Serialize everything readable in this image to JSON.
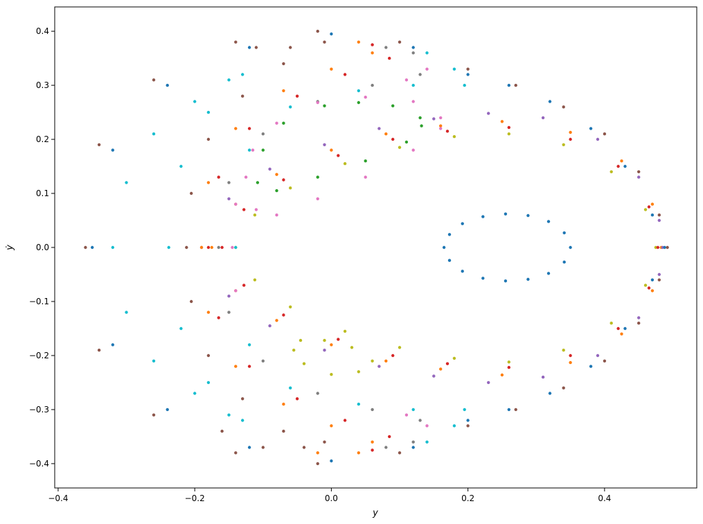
{
  "chart_data": {
    "type": "scatter",
    "title": "",
    "xlabel": "y",
    "ylabel": "ẏ",
    "xlim": [
      -0.405,
      0.535
    ],
    "ylim": [
      -0.445,
      0.445
    ],
    "xticks": [
      -0.4,
      -0.2,
      0.0,
      0.2,
      0.4
    ],
    "xtick_labels": [
      "−0.4",
      "−0.2",
      "0.0",
      "0.2",
      "0.4"
    ],
    "yticks": [
      -0.4,
      -0.3,
      -0.2,
      -0.1,
      0.0,
      0.1,
      0.2,
      0.3,
      0.4
    ],
    "ytick_labels": [
      "−0.4",
      "−0.3",
      "−0.2",
      "−0.1",
      "0.0",
      "0.1",
      "0.2",
      "0.3",
      "0.4"
    ],
    "grid": false,
    "legend": "none",
    "series": [
      {
        "color": "#1f77b4",
        "points": [
          [
            0.35,
            0.0
          ],
          [
            0.341,
            0.027
          ],
          [
            0.318,
            0.048
          ],
          [
            0.288,
            0.059
          ],
          [
            0.255,
            0.062
          ],
          [
            0.222,
            0.057
          ],
          [
            0.192,
            0.044
          ],
          [
            0.173,
            0.024
          ],
          [
            0.165,
            0.0
          ],
          [
            0.173,
            -0.024
          ],
          [
            0.192,
            -0.044
          ],
          [
            0.222,
            -0.057
          ],
          [
            0.255,
            -0.062
          ],
          [
            0.288,
            -0.059
          ],
          [
            0.318,
            -0.048
          ],
          [
            0.341,
            -0.027
          ]
        ]
      },
      {
        "color": "#bcbd22",
        "points": [
          [
            -0.14,
            0.0
          ],
          [
            -0.112,
            0.06
          ],
          [
            -0.06,
            0.11
          ],
          [
            0.02,
            0.155
          ],
          [
            0.1,
            0.185
          ],
          [
            0.18,
            0.205
          ],
          [
            0.26,
            0.21
          ],
          [
            0.34,
            0.19
          ],
          [
            0.41,
            0.14
          ],
          [
            0.46,
            0.07
          ],
          [
            0.475,
            0.0
          ],
          [
            0.46,
            -0.07
          ],
          [
            0.41,
            -0.14
          ],
          [
            0.34,
            -0.19
          ],
          [
            0.26,
            -0.212
          ],
          [
            0.18,
            -0.205
          ],
          [
            0.1,
            -0.185
          ],
          [
            0.02,
            -0.155
          ],
          [
            -0.06,
            -0.11
          ],
          [
            -0.112,
            -0.06
          ]
        ]
      },
      {
        "color": "#d62728",
        "points": [
          [
            -0.16,
            0.0
          ],
          [
            -0.128,
            0.07
          ],
          [
            -0.07,
            0.125
          ],
          [
            0.01,
            0.17
          ],
          [
            0.09,
            0.2
          ],
          [
            0.17,
            0.215
          ],
          [
            0.26,
            0.222
          ],
          [
            0.35,
            0.2
          ],
          [
            0.42,
            0.15
          ],
          [
            0.465,
            0.075
          ],
          [
            0.478,
            0.0
          ],
          [
            0.465,
            -0.075
          ],
          [
            0.42,
            -0.15
          ],
          [
            0.35,
            -0.2
          ],
          [
            0.26,
            -0.222
          ],
          [
            0.17,
            -0.215
          ],
          [
            0.09,
            -0.2
          ],
          [
            0.01,
            -0.17
          ],
          [
            -0.07,
            -0.125
          ],
          [
            -0.128,
            -0.07
          ]
        ]
      },
      {
        "color": "#ff7f0e",
        "points": [
          [
            -0.175,
            0.0
          ],
          [
            -0.14,
            0.08
          ],
          [
            -0.08,
            0.135
          ],
          [
            0.0,
            0.18
          ],
          [
            0.08,
            0.21
          ],
          [
            0.16,
            0.225
          ],
          [
            0.25,
            0.233
          ],
          [
            0.35,
            0.213
          ],
          [
            0.425,
            0.16
          ],
          [
            0.47,
            0.08
          ],
          [
            0.483,
            0.0
          ],
          [
            0.47,
            -0.08
          ],
          [
            0.425,
            -0.16
          ],
          [
            0.35,
            -0.213
          ],
          [
            0.25,
            -0.236
          ],
          [
            0.16,
            -0.225
          ],
          [
            0.08,
            -0.21
          ],
          [
            0.0,
            -0.18
          ],
          [
            -0.08,
            -0.135
          ],
          [
            -0.14,
            -0.08
          ]
        ]
      },
      {
        "color": "#9467bd",
        "points": [
          [
            -0.19,
            0.0
          ],
          [
            -0.15,
            0.09
          ],
          [
            -0.09,
            0.145
          ],
          [
            -0.01,
            0.19
          ],
          [
            0.07,
            0.22
          ],
          [
            0.15,
            0.238
          ],
          [
            0.23,
            0.248
          ],
          [
            0.31,
            0.24
          ],
          [
            0.39,
            0.2
          ],
          [
            0.45,
            0.13
          ],
          [
            0.48,
            0.05
          ],
          [
            0.485,
            0.0
          ],
          [
            0.48,
            -0.05
          ],
          [
            0.45,
            -0.13
          ],
          [
            0.39,
            -0.2
          ],
          [
            0.31,
            -0.24
          ],
          [
            0.23,
            -0.25
          ],
          [
            0.15,
            -0.238
          ],
          [
            0.07,
            -0.22
          ],
          [
            -0.01,
            -0.19
          ],
          [
            -0.09,
            -0.145
          ],
          [
            -0.15,
            -0.09
          ]
        ]
      },
      {
        "color": "#1f77b4",
        "points": [
          [
            0.2,
            0.32
          ],
          [
            0.26,
            0.3
          ],
          [
            0.32,
            0.27
          ],
          [
            0.38,
            0.22
          ],
          [
            0.43,
            0.15
          ],
          [
            0.47,
            0.06
          ],
          [
            0.488,
            0.0
          ],
          [
            0.47,
            -0.06
          ],
          [
            0.43,
            -0.15
          ],
          [
            0.38,
            -0.22
          ],
          [
            0.32,
            -0.27
          ],
          [
            0.26,
            -0.3
          ],
          [
            0.2,
            -0.32
          ],
          [
            0.12,
            -0.37
          ],
          [
            0.0,
            -0.395
          ],
          [
            -0.12,
            -0.37
          ],
          [
            -0.24,
            -0.3
          ],
          [
            -0.32,
            -0.18
          ],
          [
            -0.35,
            0.0
          ],
          [
            -0.32,
            0.18
          ],
          [
            -0.24,
            0.3
          ],
          [
            -0.12,
            0.37
          ],
          [
            0.0,
            0.395
          ],
          [
            0.12,
            0.37
          ]
        ]
      },
      {
        "color": "#8c564b",
        "points": [
          [
            0.2,
            0.33
          ],
          [
            0.27,
            0.3
          ],
          [
            0.34,
            0.26
          ],
          [
            0.4,
            0.21
          ],
          [
            0.45,
            0.14
          ],
          [
            0.48,
            0.06
          ],
          [
            0.492,
            0.0
          ],
          [
            0.48,
            -0.06
          ],
          [
            0.45,
            -0.14
          ],
          [
            0.4,
            -0.21
          ],
          [
            0.34,
            -0.26
          ],
          [
            0.27,
            -0.3
          ],
          [
            0.2,
            -0.33
          ],
          [
            0.1,
            -0.38
          ],
          [
            -0.02,
            -0.4
          ],
          [
            -0.14,
            -0.38
          ],
          [
            -0.26,
            -0.31
          ],
          [
            -0.34,
            -0.19
          ],
          [
            -0.36,
            0.0
          ],
          [
            -0.34,
            0.19
          ],
          [
            -0.26,
            0.31
          ],
          [
            -0.14,
            0.38
          ],
          [
            -0.02,
            0.4
          ],
          [
            0.1,
            0.38
          ]
        ]
      },
      {
        "color": "#17becf",
        "points": [
          [
            -0.13,
            0.32
          ],
          [
            -0.18,
            0.25
          ],
          [
            -0.22,
            0.15
          ],
          [
            -0.238,
            0.0
          ],
          [
            -0.22,
            -0.15
          ],
          [
            -0.18,
            -0.25
          ],
          [
            -0.13,
            -0.32
          ],
          [
            -0.15,
            -0.31
          ],
          [
            -0.2,
            -0.27
          ],
          [
            -0.26,
            -0.21
          ],
          [
            -0.3,
            -0.12
          ],
          [
            -0.32,
            0.0
          ],
          [
            -0.3,
            0.12
          ],
          [
            -0.26,
            0.21
          ],
          [
            -0.2,
            0.27
          ],
          [
            -0.15,
            0.31
          ]
        ]
      },
      {
        "color": "#8c564b",
        "points": [
          [
            -0.01,
            0.38
          ],
          [
            -0.07,
            0.34
          ],
          [
            -0.13,
            0.28
          ],
          [
            -0.18,
            0.2
          ],
          [
            -0.205,
            0.1
          ],
          [
            -0.212,
            0.0
          ],
          [
            -0.205,
            -0.1
          ],
          [
            -0.18,
            -0.2
          ],
          [
            -0.13,
            -0.28
          ],
          [
            -0.07,
            -0.34
          ],
          [
            -0.01,
            -0.36
          ],
          [
            -0.04,
            -0.37
          ],
          [
            -0.1,
            -0.37
          ],
          [
            -0.16,
            -0.34
          ],
          [
            -0.06,
            0.37
          ],
          [
            -0.11,
            0.37
          ]
        ]
      },
      {
        "color": "#ff7f0e",
        "points": [
          [
            0.06,
            0.36
          ],
          [
            0.0,
            0.33
          ],
          [
            -0.07,
            0.29
          ],
          [
            -0.14,
            0.22
          ],
          [
            -0.18,
            0.12
          ],
          [
            -0.19,
            0.0
          ],
          [
            -0.18,
            -0.12
          ],
          [
            -0.14,
            -0.22
          ],
          [
            -0.07,
            -0.29
          ],
          [
            0.0,
            -0.33
          ],
          [
            0.06,
            -0.36
          ],
          [
            0.04,
            -0.38
          ],
          [
            -0.02,
            -0.38
          ],
          [
            0.04,
            0.38
          ]
        ]
      },
      {
        "color": "#d62728",
        "points": [
          [
            0.085,
            0.35
          ],
          [
            0.02,
            0.32
          ],
          [
            -0.05,
            0.28
          ],
          [
            -0.12,
            0.22
          ],
          [
            -0.165,
            0.13
          ],
          [
            -0.18,
            0.0
          ],
          [
            -0.165,
            -0.13
          ],
          [
            -0.12,
            -0.22
          ],
          [
            -0.05,
            -0.28
          ],
          [
            0.02,
            -0.32
          ],
          [
            0.085,
            -0.35
          ],
          [
            0.06,
            -0.375
          ],
          [
            0.06,
            0.375
          ]
        ]
      },
      {
        "color": "#7f7f7f",
        "points": [
          [
            0.13,
            0.32
          ],
          [
            0.06,
            0.3
          ],
          [
            -0.02,
            0.27
          ],
          [
            -0.1,
            0.21
          ],
          [
            -0.15,
            0.12
          ],
          [
            -0.165,
            0.0
          ],
          [
            -0.15,
            -0.12
          ],
          [
            -0.1,
            -0.21
          ],
          [
            -0.02,
            -0.27
          ],
          [
            0.06,
            -0.3
          ],
          [
            0.13,
            -0.32
          ],
          [
            0.12,
            -0.36
          ],
          [
            0.08,
            -0.37
          ],
          [
            0.12,
            0.36
          ],
          [
            0.08,
            0.37
          ]
        ]
      },
      {
        "color": "#e377c2",
        "points": [
          [
            0.14,
            0.33
          ],
          [
            0.11,
            0.31
          ],
          [
            0.14,
            -0.33
          ],
          [
            0.11,
            -0.31
          ],
          [
            -0.14,
            0.08
          ],
          [
            -0.145,
            0.0
          ],
          [
            -0.14,
            -0.08
          ]
        ]
      },
      {
        "color": "#17becf",
        "points": [
          [
            0.195,
            0.3
          ],
          [
            0.12,
            0.3
          ],
          [
            0.04,
            0.29
          ],
          [
            -0.06,
            0.26
          ],
          [
            -0.12,
            0.18
          ],
          [
            -0.14,
            0.0
          ],
          [
            -0.12,
            -0.18
          ],
          [
            -0.06,
            -0.26
          ],
          [
            0.04,
            -0.29
          ],
          [
            0.12,
            -0.3
          ],
          [
            0.195,
            -0.3
          ],
          [
            0.18,
            -0.33
          ],
          [
            0.14,
            -0.36
          ],
          [
            0.18,
            0.33
          ],
          [
            0.14,
            0.36
          ]
        ]
      },
      {
        "color": "#e377c2",
        "points": [
          [
            0.16,
            0.24
          ],
          [
            0.12,
            0.27
          ],
          [
            0.05,
            0.278
          ],
          [
            -0.02,
            0.268
          ],
          [
            -0.08,
            0.23
          ],
          [
            -0.115,
            0.18
          ],
          [
            -0.125,
            0.13
          ],
          [
            -0.11,
            0.07
          ],
          [
            -0.08,
            0.06
          ],
          [
            -0.02,
            0.09
          ],
          [
            0.05,
            0.13
          ],
          [
            0.12,
            0.18
          ],
          [
            0.16,
            0.22
          ]
        ]
      },
      {
        "color": "#2ca02c",
        "points": [
          [
            0.13,
            0.24
          ],
          [
            0.09,
            0.262
          ],
          [
            0.04,
            0.268
          ],
          [
            -0.01,
            0.262
          ],
          [
            -0.07,
            0.23
          ],
          [
            -0.1,
            0.18
          ],
          [
            -0.108,
            0.12
          ],
          [
            -0.08,
            0.105
          ],
          [
            -0.02,
            0.13
          ],
          [
            0.05,
            0.16
          ],
          [
            0.11,
            0.195
          ],
          [
            0.132,
            0.225
          ]
        ]
      },
      {
        "color": "#bcbd22",
        "points": [
          [
            0.06,
            -0.21
          ],
          [
            0.04,
            -0.23
          ],
          [
            0.0,
            -0.235
          ],
          [
            -0.04,
            -0.215
          ],
          [
            -0.055,
            -0.19
          ],
          [
            -0.045,
            -0.172
          ],
          [
            -0.01,
            -0.172
          ],
          [
            0.03,
            -0.185
          ]
        ]
      }
    ]
  }
}
